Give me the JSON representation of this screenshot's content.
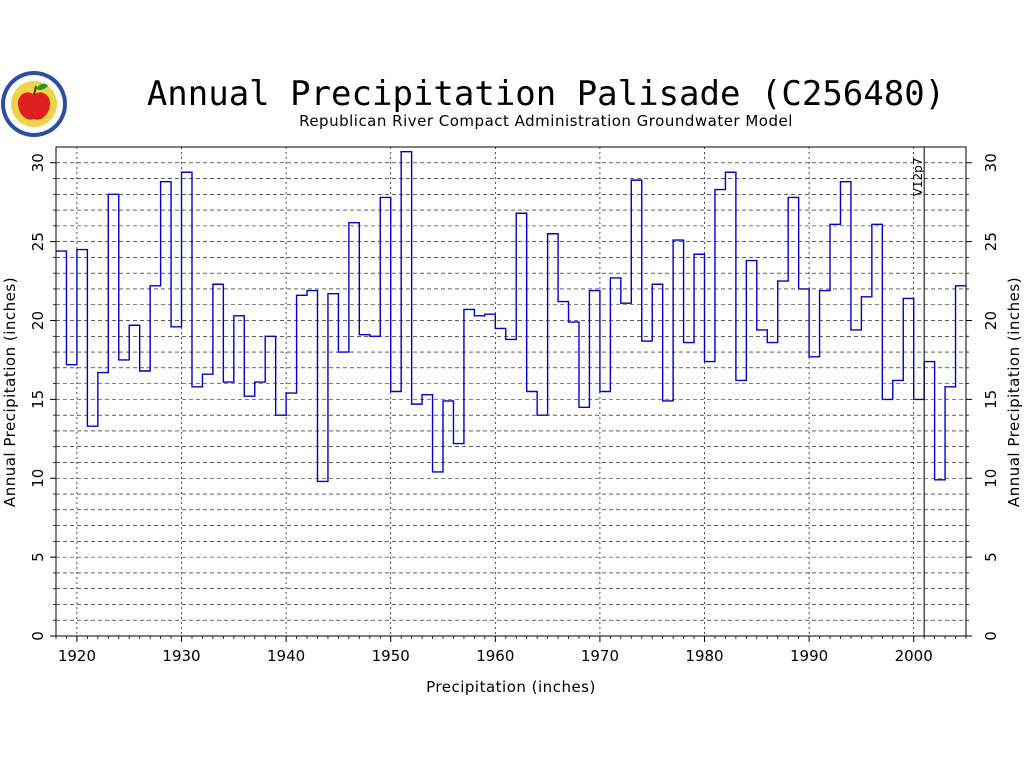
{
  "logo": {
    "icon": "apple-seal-icon",
    "colors": {
      "ring": "#2a4fa0",
      "fill": "#f2d24a",
      "apple": "#e02020",
      "leaf": "#1f9a2a"
    }
  },
  "chart_data": {
    "type": "line",
    "style": "step",
    "title": "Annual Precipitation Palisade (C256480)",
    "subtitle": "Republican River Compact Administration Groundwater Model",
    "xlabel": "Precipitation (inches)",
    "ylabel": "Annual Precipitation (inches)",
    "ylabel_right": "Annual Precipitation (inches)",
    "xlim": [
      1918,
      2005
    ],
    "ylim": [
      0,
      31
    ],
    "x_ticks": [
      1920,
      1930,
      1940,
      1950,
      1960,
      1970,
      1980,
      1990,
      2000
    ],
    "y_ticks": [
      0,
      5,
      10,
      15,
      20,
      25,
      30
    ],
    "grid": {
      "vertical_dotted_each_decade": true,
      "horizontal_dashed_each_inch": true
    },
    "annotation": {
      "text": "V12p7",
      "x": 2001
    },
    "series_color": "#0000cc",
    "series": [
      {
        "name": "",
        "x": [
          1918,
          1919,
          1920,
          1921,
          1922,
          1923,
          1924,
          1925,
          1926,
          1927,
          1928,
          1929,
          1930,
          1931,
          1932,
          1933,
          1934,
          1935,
          1936,
          1937,
          1938,
          1939,
          1940,
          1941,
          1942,
          1943,
          1944,
          1945,
          1946,
          1947,
          1948,
          1949,
          1950,
          1951,
          1952,
          1953,
          1954,
          1955,
          1956,
          1957,
          1958,
          1959,
          1960,
          1961,
          1962,
          1963,
          1964,
          1965,
          1966,
          1967,
          1968,
          1969,
          1970,
          1971,
          1972,
          1973,
          1974,
          1975,
          1976,
          1977,
          1978,
          1979,
          1980,
          1981,
          1982,
          1983,
          1984,
          1985,
          1986,
          1987,
          1988,
          1989,
          1990,
          1991,
          1992,
          1993,
          1994,
          1995,
          1996,
          1997,
          1998,
          1999,
          2000,
          2001,
          2002,
          2003,
          2004
        ],
        "values": [
          24.4,
          17.2,
          24.5,
          13.3,
          16.7,
          28.0,
          17.5,
          19.7,
          16.8,
          22.2,
          28.8,
          19.6,
          29.4,
          15.8,
          16.6,
          22.3,
          16.1,
          20.3,
          15.2,
          16.1,
          19.0,
          14.0,
          15.4,
          21.6,
          21.9,
          9.8,
          21.7,
          18.0,
          26.2,
          19.1,
          19.0,
          27.8,
          15.5,
          30.7,
          14.7,
          15.3,
          10.4,
          14.9,
          12.2,
          20.7,
          20.3,
          20.4,
          19.5,
          18.8,
          26.8,
          15.5,
          14.0,
          25.5,
          21.2,
          19.9,
          14.5,
          21.9,
          15.5,
          22.7,
          21.1,
          28.9,
          18.7,
          22.3,
          14.9,
          25.1,
          18.6,
          24.2,
          17.4,
          28.3,
          29.4,
          16.2,
          23.8,
          19.4,
          18.6,
          22.5,
          27.8,
          22.0,
          17.7,
          21.9,
          26.1,
          28.8,
          19.4,
          21.5,
          26.1,
          15.0,
          16.2,
          21.4,
          15.0,
          17.4,
          9.9,
          15.8,
          22.2
        ]
      }
    ]
  }
}
